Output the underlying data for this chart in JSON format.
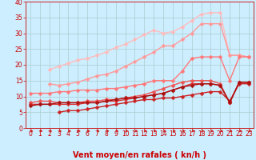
{
  "title": "",
  "xlabel": "Vent moyen/en rafales ( kn/h )",
  "bg_color": "#cceeff",
  "grid_color": "#aacccc",
  "xlim": [
    -0.5,
    23.5
  ],
  "ylim": [
    0,
    40
  ],
  "yticks": [
    0,
    5,
    10,
    15,
    20,
    25,
    30,
    35,
    40
  ],
  "xticks": [
    0,
    1,
    2,
    3,
    4,
    5,
    6,
    7,
    8,
    9,
    10,
    11,
    12,
    13,
    14,
    15,
    16,
    17,
    18,
    19,
    20,
    21,
    22,
    23
  ],
  "lines": [
    {
      "x": [
        2,
        3,
        4,
        5,
        6,
        7,
        8,
        9,
        10,
        11,
        12,
        13,
        14,
        15,
        16,
        17,
        18,
        19,
        20,
        21,
        22,
        23
      ],
      "y": [
        18.5,
        19.5,
        20.5,
        21.5,
        22,
        23,
        24,
        25.5,
        26.5,
        28,
        29.5,
        31,
        30,
        30.5,
        32,
        34,
        36,
        36.5,
        36.5,
        23,
        23,
        22.5
      ],
      "color": "#ffbbbb",
      "lw": 1.0,
      "ms": 2.5
    },
    {
      "x": [
        2,
        3,
        4,
        5,
        6,
        7,
        8,
        9,
        10,
        11,
        12,
        13,
        14,
        15,
        16,
        17,
        18,
        19,
        20,
        21,
        22,
        23
      ],
      "y": [
        14,
        13.5,
        14,
        14.5,
        15.5,
        16.5,
        17,
        18,
        19.5,
        21,
        22.5,
        24,
        26,
        26,
        28,
        30,
        33,
        33,
        33,
        23,
        23,
        22.5
      ],
      "color": "#ff9999",
      "lw": 1.0,
      "ms": 2.5
    },
    {
      "x": [
        0,
        1,
        2,
        3,
        4,
        5,
        6,
        7,
        8,
        9,
        10,
        11,
        12,
        13,
        14,
        15,
        16,
        17,
        18,
        19,
        20,
        21,
        22,
        23
      ],
      "y": [
        11,
        11,
        11,
        11.5,
        11.5,
        12,
        12,
        12,
        12.5,
        12.5,
        13,
        13.5,
        14,
        15,
        15,
        15,
        18,
        22,
        22.5,
        22.5,
        22.5,
        15,
        22.5,
        22.5
      ],
      "color": "#ff7777",
      "lw": 1.0,
      "ms": 2.5
    },
    {
      "x": [
        0,
        1,
        2,
        3,
        4,
        5,
        6,
        7,
        8,
        9,
        10,
        11,
        12,
        13,
        14,
        15,
        16,
        17,
        18,
        19,
        20,
        21,
        22,
        23
      ],
      "y": [
        8,
        8.5,
        8.5,
        8,
        8,
        8,
        8.5,
        8.5,
        9,
        9,
        9.5,
        10,
        10.5,
        11.5,
        12.5,
        13.5,
        14.5,
        15,
        15,
        15,
        14,
        8,
        14.5,
        14.5
      ],
      "color": "#ee5555",
      "lw": 1.0,
      "ms": 2.5
    },
    {
      "x": [
        0,
        1,
        2,
        3,
        4,
        5,
        6,
        7,
        8,
        9,
        10,
        11,
        12,
        13,
        14,
        15,
        16,
        17,
        18,
        19,
        20,
        21,
        22,
        23
      ],
      "y": [
        7.5,
        7.5,
        7.5,
        7.5,
        7.5,
        7.5,
        8,
        8,
        8.5,
        8.5,
        9,
        9.5,
        10,
        10.5,
        11,
        12,
        13,
        14,
        14,
        14,
        13.5,
        8,
        14.5,
        14.5
      ],
      "color": "#dd3333",
      "lw": 1.0,
      "ms": 2.5
    },
    {
      "x": [
        3,
        4,
        5,
        6,
        7,
        8,
        9,
        10,
        11,
        12,
        13,
        14,
        15,
        16,
        17,
        18,
        19,
        20,
        21,
        22,
        23
      ],
      "y": [
        5,
        5.5,
        5.5,
        6,
        6.5,
        7,
        7.5,
        8,
        8.5,
        9,
        9,
        9.5,
        9.5,
        10,
        10.5,
        11,
        11.5,
        11.5,
        8.5,
        14,
        14
      ],
      "color": "#cc2222",
      "lw": 1.0,
      "ms": 2.5
    },
    {
      "x": [
        0,
        1,
        2,
        3,
        4,
        5,
        6,
        7,
        8,
        9,
        10,
        11,
        12,
        13,
        14,
        15,
        16,
        17,
        18,
        19,
        20,
        21,
        22,
        23
      ],
      "y": [
        7,
        7.5,
        7.5,
        8,
        8,
        8,
        8,
        8,
        8.5,
        9,
        9.5,
        9.5,
        10,
        10.5,
        11,
        12,
        13,
        13.5,
        14,
        14,
        13.5,
        8,
        14.5,
        14.5
      ],
      "color": "#aa1111",
      "lw": 1.0,
      "ms": 2.5
    }
  ],
  "arrow_color": "#cc2222",
  "xlabel_color": "#cc0000",
  "xlabel_fontsize": 7,
  "tick_fontsize": 5.5,
  "tick_color": "#cc0000",
  "spine_color": "#cc2222"
}
